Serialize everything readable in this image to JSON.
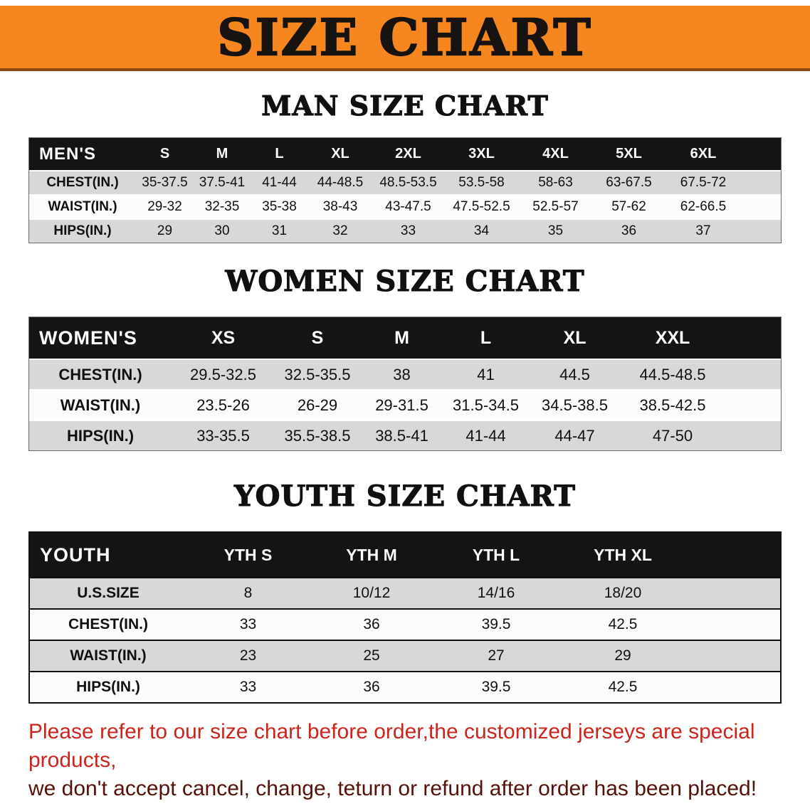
{
  "banner": {
    "title": "SIZE CHART"
  },
  "colors": {
    "banner_bg": "#f6861f",
    "table_header_bg": "#141414",
    "row_gray": "#d8d8d8",
    "note_red": "#c9251c"
  },
  "sections": [
    {
      "heading": "MAN SIZE CHART",
      "table": {
        "name": "MEN'S",
        "columns": [
          "S",
          "M",
          "L",
          "XL",
          "2XL",
          "3XL",
          "4XL",
          "5XL",
          "6XL"
        ],
        "rows": [
          {
            "label": "CHEST(IN.)",
            "values": [
              "35-37.5",
              "37.5-41",
              "41-44",
              "44-48.5",
              "48.5-53.5",
              "53.5-58",
              "58-63",
              "63-67.5",
              "67.5-72"
            ]
          },
          {
            "label": "WAIST(IN.)",
            "values": [
              "29-32",
              "32-35",
              "35-38",
              "38-43",
              "43-47.5",
              "47.5-52.5",
              "52.5-57",
              "57-62",
              "62-66.5"
            ]
          },
          {
            "label": "HIPS(IN.)",
            "values": [
              "29",
              "30",
              "31",
              "32",
              "33",
              "34",
              "35",
              "36",
              "37"
            ]
          }
        ]
      }
    },
    {
      "heading": "WOMEN SIZE CHART",
      "table": {
        "name": "WOMEN'S",
        "columns": [
          "XS",
          "S",
          "M",
          "L",
          "XL",
          "XXL"
        ],
        "rows": [
          {
            "label": "CHEST(IN.)",
            "values": [
              "29.5-32.5",
              "32.5-35.5",
              "38",
              "41",
              "44.5",
              "44.5-48.5"
            ]
          },
          {
            "label": "WAIST(IN.)",
            "values": [
              "23.5-26",
              "26-29",
              "29-31.5",
              "31.5-34.5",
              "34.5-38.5",
              "38.5-42.5"
            ]
          },
          {
            "label": "HIPS(IN.)",
            "values": [
              "33-35.5",
              "35.5-38.5",
              "38.5-41",
              "41-44",
              "44-47",
              "47-50"
            ]
          }
        ]
      }
    },
    {
      "heading": "YOUTH SIZE CHART",
      "table": {
        "name": "YOUTH",
        "columns": [
          "YTH S",
          "YTH M",
          "YTH L",
          "YTH XL"
        ],
        "rows": [
          {
            "label": "U.S.SIZE",
            "values": [
              "8",
              "10/12",
              "14/16",
              "18/20"
            ]
          },
          {
            "label": "CHEST(IN.)",
            "values": [
              "33",
              "36",
              "39.5",
              "42.5"
            ]
          },
          {
            "label": "WAIST(IN.)",
            "values": [
              "23",
              "25",
              "27",
              "29"
            ]
          },
          {
            "label": "HIPS(IN.)",
            "values": [
              "33",
              "36",
              "39.5",
              "42.5"
            ]
          }
        ]
      }
    }
  ],
  "note": {
    "lines": [
      "Please refer to our size chart before order,the customized jerseys are special products,",
      "we don't accept cancel, change, teturn or refund after order has been placed!"
    ]
  }
}
